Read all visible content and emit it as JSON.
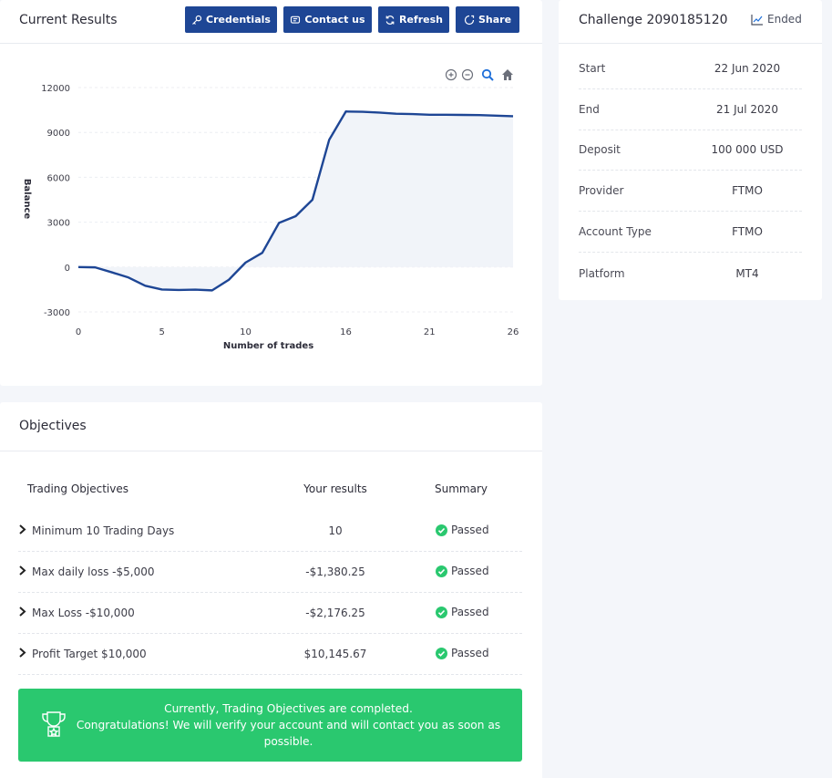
{
  "results": {
    "title": "Current Results",
    "buttons": {
      "credentials": "Credentials",
      "contact": "Contact us",
      "refresh": "Refresh",
      "share": "Share"
    }
  },
  "chart_data": {
    "type": "area",
    "xlabel": "Number of trades",
    "ylabel": "Balance",
    "xlim": [
      0,
      26
    ],
    "ylim": [
      -3000,
      12000
    ],
    "x_ticks": [
      "0",
      "5",
      "10",
      "16",
      "21",
      "26"
    ],
    "y_ticks": [
      "12000",
      "9000",
      "6000",
      "3000",
      "0",
      "-3000"
    ],
    "x": [
      0,
      1,
      2,
      3,
      4,
      5,
      6,
      7,
      8,
      9,
      10,
      11,
      12,
      13,
      14,
      15,
      16,
      17,
      18,
      19,
      20,
      21,
      22,
      23,
      24,
      25,
      26
    ],
    "values": [
      0,
      -20,
      -350,
      -700,
      -1250,
      -1500,
      -1530,
      -1510,
      -1560,
      -850,
      300,
      950,
      2950,
      3400,
      4500,
      8500,
      10400,
      10380,
      10330,
      10250,
      10230,
      10180,
      10180,
      10170,
      10160,
      10120,
      10080
    ],
    "line_color": "#1e4695",
    "fill_color": "#f1f4f9",
    "grid": true
  },
  "challenge": {
    "title": "Challenge 2090185120",
    "status": "Ended",
    "rows": [
      {
        "label": "Start",
        "value": "22 Jun 2020"
      },
      {
        "label": "End",
        "value": "21 Jul 2020"
      },
      {
        "label": "Deposit",
        "value": "100 000 USD"
      },
      {
        "label": "Provider",
        "value": "FTMO"
      },
      {
        "label": "Account Type",
        "value": "FTMO"
      },
      {
        "label": "Platform",
        "value": "MT4"
      }
    ]
  },
  "objectives": {
    "title": "Objectives",
    "headers": {
      "objective": "Trading Objectives",
      "results": "Your results",
      "summary": "Summary"
    },
    "rows": [
      {
        "name": "Minimum 10 Trading Days",
        "result": "10",
        "summary": "Passed"
      },
      {
        "name": "Max daily loss -$5,000",
        "result": "-$1,380.25",
        "summary": "Passed"
      },
      {
        "name": "Max Loss -$10,000",
        "result": "-$2,176.25",
        "summary": "Passed"
      },
      {
        "name": "Profit Target $10,000",
        "result": "$10,145.67",
        "summary": "Passed"
      }
    ],
    "banner": {
      "line1": "Currently, Trading Objectives are completed.",
      "line2": "Congratulations! We will verify your account and will contact you as soon as possible."
    }
  },
  "colors": {
    "primary": "#1e4695",
    "success": "#2ac86f",
    "background": "#f4f6fa"
  }
}
